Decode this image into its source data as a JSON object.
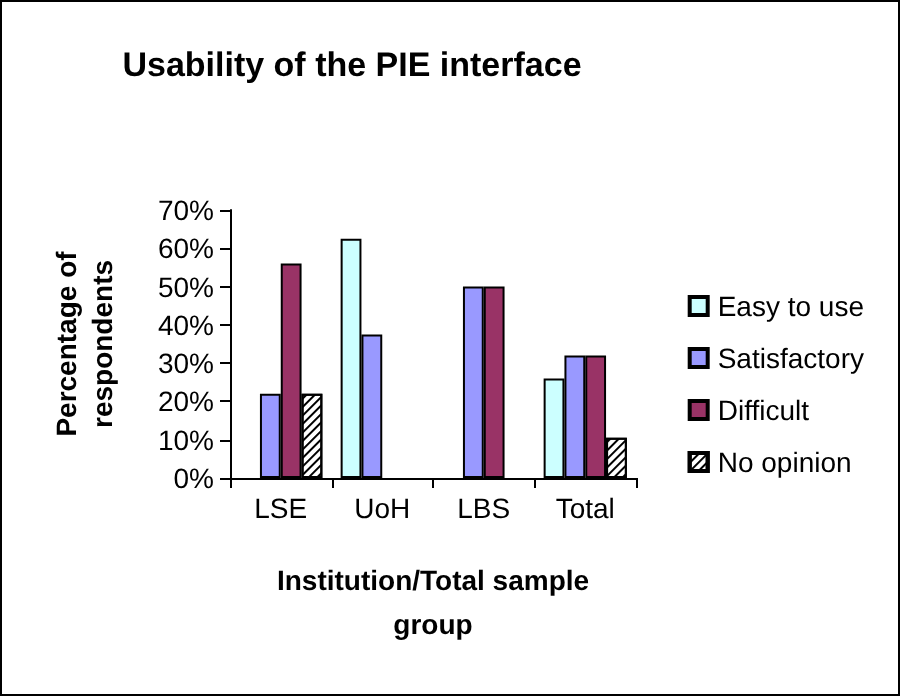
{
  "chart_data": {
    "type": "bar",
    "title": "Usability of the PIE interface",
    "xlabel": "Institution/Total sample\ngroup",
    "ylabel": "Percentage of\nrespondents",
    "categories": [
      "LSE",
      "UoH",
      "LBS",
      "Total"
    ],
    "series": [
      {
        "name": "Easy to use",
        "color": "#ccffff",
        "values": [
          null,
          62.5,
          null,
          26
        ]
      },
      {
        "name": "Satisfactory",
        "color": "#9999ff",
        "values": [
          22,
          37.5,
          50,
          32
        ]
      },
      {
        "name": "Difficult",
        "color": "#993366",
        "values": [
          56,
          null,
          50,
          32
        ]
      },
      {
        "name": "No opinion",
        "color": "#ffffff",
        "values": [
          22,
          null,
          null,
          10.5
        ]
      }
    ],
    "ylim": [
      0,
      70
    ],
    "yticks": [
      {
        "value": 0,
        "label": "0%"
      },
      {
        "value": 10,
        "label": "10%"
      },
      {
        "value": 20,
        "label": "20%"
      },
      {
        "value": 30,
        "label": "30%"
      },
      {
        "value": 40,
        "label": "40%"
      },
      {
        "value": 50,
        "label": "50%"
      },
      {
        "value": 60,
        "label": "60%"
      },
      {
        "value": 70,
        "label": "70%"
      }
    ],
    "grid": false,
    "legend": "right"
  }
}
